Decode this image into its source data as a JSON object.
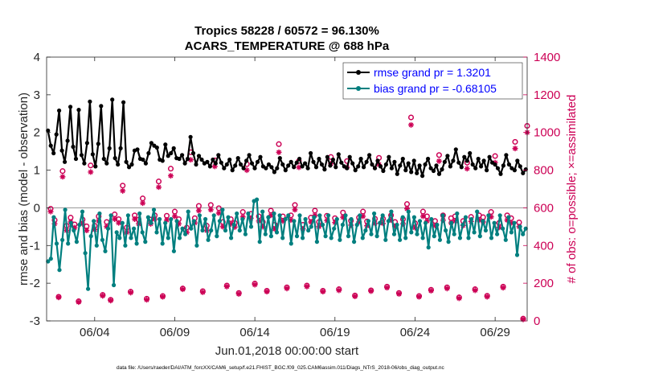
{
  "chart_data": {
    "type": "line",
    "title_line1": "Tropics 58228 / 60572 = 96.130%",
    "title_line2": "ACARS_TEMPERATURE @ 688 hPa",
    "xlabel": "Jun.01,2018 00:00:00 start",
    "ylabel_left": "rmse and bias (model - observation)",
    "ylabel_right": "# of obs: o=possible; ×=assimilated",
    "footnote": "data file: /Users/raeder/DAI/ATM_forcXX/CAM6_setup/f.e21.FHIST_BGC.f09_025.CAM6assim.011/Diags_NTrS_2018-06/obs_diag_output.nc",
    "x_ticks": [
      "06/04",
      "06/09",
      "06/14",
      "06/19",
      "06/24",
      "06/29"
    ],
    "x_tick_days": [
      4,
      9,
      14,
      19,
      24,
      29
    ],
    "xlim": [
      1,
      31
    ],
    "ylim_left": [
      -3,
      4
    ],
    "y_ticks_left": [
      "-3",
      "-2",
      "-1",
      "0",
      "1",
      "2",
      "3",
      "4"
    ],
    "ylim_right": [
      0,
      1400
    ],
    "y_ticks_right": [
      "0",
      "200",
      "400",
      "600",
      "800",
      "1000",
      "1200",
      "1400"
    ],
    "colors": {
      "rmse": "#000000",
      "bias": "#007f7f",
      "counts": "#cc0055",
      "zero_line": "#a0a0a0",
      "legend_text": "#0000ff"
    },
    "series": [
      {
        "name": "rmse grand pr = 1.3201",
        "axis": "left",
        "values": [
          2.05,
          1.65,
          1.45,
          1.95,
          2.58,
          1.52,
          1.22,
          1.78,
          2.68,
          1.62,
          1.3,
          2.6,
          1.4,
          1.18,
          1.72,
          2.82,
          1.42,
          1.1,
          1.7,
          2.7,
          1.3,
          1.18,
          1.58,
          2.87,
          1.32,
          1.15,
          1.58,
          2.8,
          1.22,
          1.08,
          1.15,
          1.52,
          1.55,
          1.3,
          1.28,
          1.18,
          1.45,
          1.72,
          1.65,
          1.6,
          1.28,
          1.25,
          1.68,
          1.38,
          1.45,
          1.58,
          1.32,
          1.3,
          1.4,
          1.18,
          1.3,
          1.88,
          1.45,
          1.15,
          1.38,
          1.28,
          1.18,
          1.22,
          1.1,
          1.28,
          1.18,
          1.4,
          1.2,
          1.05,
          1.15,
          1.28,
          1.0,
          1.12,
          1.32,
          1.15,
          1.05,
          1.25,
          1.4,
          1.18,
          1.05,
          1.22,
          1.35,
          1.1,
          1.05,
          1.15,
          1.08,
          0.95,
          1.05,
          1.32,
          1.15,
          1.0,
          1.12,
          1.22,
          1.08,
          1.2,
          1.3,
          1.1,
          1.18,
          1.05,
          1.45,
          1.22,
          1.08,
          1.3,
          1.15,
          1.02,
          1.35,
          1.12,
          1.28,
          1.08,
          1.42,
          1.2,
          1.1,
          1.05,
          1.35,
          1.18,
          1.0,
          1.1,
          1.3,
          1.08,
          1.22,
          1.4,
          1.15,
          1.05,
          1.25,
          1.1,
          0.98,
          1.15,
          1.35,
          1.05,
          1.22,
          0.9,
          1.12,
          1.3,
          1.0,
          1.18,
          0.95,
          1.25,
          0.92,
          1.12,
          0.85,
          1.15,
          1.3,
          1.05,
          0.98,
          1.12,
          0.9,
          1.02,
          1.22,
          1.38,
          1.1,
          1.25,
          1.55,
          1.2,
          1.08,
          1.35,
          1.25,
          1.45,
          1.15,
          1.05,
          1.3,
          1.1,
          1.25,
          1.0,
          1.35,
          1.2,
          1.15,
          1.05,
          0.9,
          1.12,
          1.4,
          1.15,
          1.05,
          1.0,
          1.25,
          1.1,
          0.92,
          1.02
        ]
      },
      {
        "name": "bias grand pr = -0.68105",
        "axis": "left",
        "values": [
          -1.42,
          -1.35,
          -0.25,
          -0.95,
          -1.65,
          -0.85,
          -0.05,
          -0.95,
          -0.4,
          -0.6,
          -0.9,
          -0.45,
          -0.1,
          -1.2,
          -2.15,
          -0.75,
          -0.35,
          -1.0,
          -0.15,
          -0.85,
          -1.15,
          -0.55,
          -0.2,
          -2.05,
          -0.65,
          -0.8,
          -0.4,
          -1.0,
          -0.2,
          -0.8,
          -0.55,
          -0.95,
          -0.15,
          -0.65,
          -0.9,
          -0.25,
          -0.4,
          -0.05,
          -0.65,
          -0.3,
          -0.95,
          -0.4,
          -0.8,
          -0.3,
          -1.15,
          -0.35,
          -0.8,
          -0.55,
          -0.7,
          -0.1,
          -0.55,
          -0.35,
          -1.0,
          -0.2,
          -0.6,
          -0.3,
          -0.85,
          -0.6,
          -0.2,
          -0.75,
          -0.35,
          -0.05,
          -0.6,
          -0.25,
          -0.8,
          -0.45,
          -0.15,
          -0.6,
          -0.3,
          -0.7,
          -0.15,
          -0.5,
          0.18,
          0.22,
          -0.9,
          -0.1,
          -0.7,
          -0.25,
          -0.75,
          -0.15,
          -0.65,
          -0.2,
          -0.8,
          -0.3,
          -0.2,
          -0.95,
          -0.35,
          -0.75,
          -0.2,
          -0.8,
          -0.3,
          -0.6,
          -0.5,
          -0.25,
          -0.9,
          -0.2,
          -0.45,
          -0.75,
          -0.2,
          -0.8,
          -0.55,
          -0.3,
          -0.85,
          -0.45,
          -0.2,
          -0.75,
          -0.3,
          -0.9,
          -0.45,
          -0.2,
          -0.8,
          -0.6,
          -0.35,
          -0.7,
          -0.15,
          -0.75,
          -0.4,
          -0.2,
          -0.85,
          -0.35,
          -0.1,
          -0.7,
          -0.45,
          -0.85,
          -0.25,
          -0.8,
          -0.1,
          -0.65,
          -0.25,
          -0.7,
          -0.35,
          -0.8,
          -0.4,
          -1.05,
          -0.3,
          -0.75,
          -0.45,
          -0.85,
          -0.2,
          -0.6,
          -0.9,
          -0.4,
          -0.7,
          -0.15,
          -0.8,
          -0.45,
          -0.25,
          -0.8,
          -0.3,
          -0.65,
          -0.1,
          -0.75,
          -0.35,
          -0.6,
          -0.2,
          -0.8,
          -0.4,
          -0.7,
          -0.2,
          -0.55,
          -0.85,
          -0.25,
          -0.65,
          -0.4,
          -1.25,
          -0.5,
          -0.7,
          -0.55
        ]
      },
      {
        "name": "possible",
        "axis": "right",
        "marker": "o",
        "x": [
          1.25,
          1.5,
          1.75,
          2.0,
          2.25,
          2.5,
          2.75,
          3.0,
          3.25,
          3.5,
          3.75,
          4.0,
          4.25,
          4.5,
          4.75,
          5.0,
          5.25,
          5.5,
          5.75,
          6.0,
          6.25,
          6.5,
          6.75,
          7.0,
          7.25,
          7.5,
          7.75,
          8.0,
          8.25,
          8.5,
          8.75,
          9.0,
          9.25,
          9.5,
          9.75,
          10.0,
          10.25,
          10.5,
          10.75,
          11.0,
          11.25,
          11.5,
          11.75,
          12.0,
          12.25,
          12.5,
          12.75,
          13.0,
          13.25,
          13.5,
          13.75,
          14.0,
          14.25,
          14.5,
          14.75,
          15.0,
          15.25,
          15.5,
          15.75,
          16.0,
          16.25,
          16.5,
          16.75,
          17.0,
          17.25,
          17.5,
          17.75,
          18.0,
          18.25,
          18.5,
          18.75,
          19.0,
          19.25,
          19.5,
          19.75,
          20.0,
          20.25,
          20.5,
          20.75,
          21.0,
          21.25,
          21.5,
          21.75,
          22.0,
          22.25,
          22.5,
          22.75,
          23.0,
          23.25,
          23.5,
          23.75,
          24.0,
          24.25,
          24.5,
          24.75,
          25.0,
          25.25,
          25.5,
          25.75,
          26.0,
          26.25,
          26.5,
          26.75,
          27.0,
          27.25,
          27.5,
          27.75,
          28.0,
          28.25,
          28.5,
          28.75,
          29.0,
          29.25,
          29.5,
          29.75,
          30.0,
          30.25,
          30.5,
          30.75,
          31.0
        ],
        "values": [
          595,
          535,
          128,
          795,
          505,
          548,
          512,
          104,
          538,
          502,
          825,
          505,
          555,
          138,
          525,
          112,
          565,
          540,
          718,
          495,
          155,
          560,
          538,
          650,
          118,
          538,
          560,
          740,
          132,
          558,
          808,
          580,
          540,
          172,
          495,
          895,
          545,
          610,
          158,
          505,
          615,
          852,
          598,
          525,
          188,
          540,
          520,
          148,
          578,
          832,
          568,
          198,
          555,
          525,
          160,
          585,
          510,
          938,
          555,
          178,
          560,
          615,
          848,
          510,
          188,
          548,
          585,
          525,
          160,
          558,
          870,
          545,
          168,
          575,
          848,
          532,
          135,
          548,
          580,
          528,
          162,
          542,
          865,
          542,
          182,
          560,
          525,
          148,
          540,
          620,
          1080,
          518,
          132,
          580,
          555,
          165,
          530,
          880,
          560,
          178,
          545,
          555,
          125,
          530,
          840,
          552,
          168,
          560,
          550,
          133,
          578,
          875,
          520,
          182,
          560,
          545,
          950,
          523,
          12,
          1035
        ]
      },
      {
        "name": "assimilated",
        "axis": "right",
        "marker": "*",
        "x": [
          1.25,
          1.5,
          1.75,
          2.0,
          2.25,
          2.5,
          2.75,
          3.0,
          3.25,
          3.5,
          3.75,
          4.0,
          4.25,
          4.5,
          4.75,
          5.0,
          5.25,
          5.5,
          5.75,
          6.0,
          6.25,
          6.5,
          6.75,
          7.0,
          7.25,
          7.5,
          7.75,
          8.0,
          8.25,
          8.5,
          8.75,
          9.0,
          9.25,
          9.5,
          9.75,
          10.0,
          10.25,
          10.5,
          10.75,
          11.0,
          11.25,
          11.5,
          11.75,
          12.0,
          12.25,
          12.5,
          12.75,
          13.0,
          13.25,
          13.5,
          13.75,
          14.0,
          14.25,
          14.5,
          14.75,
          15.0,
          15.25,
          15.5,
          15.75,
          16.0,
          16.25,
          16.5,
          16.75,
          17.0,
          17.25,
          17.5,
          17.75,
          18.0,
          18.25,
          18.5,
          18.75,
          19.0,
          19.25,
          19.5,
          19.75,
          20.0,
          20.25,
          20.5,
          20.75,
          21.0,
          21.25,
          21.5,
          21.75,
          22.0,
          22.25,
          22.5,
          22.75,
          23.0,
          23.25,
          23.5,
          23.75,
          24.0,
          24.25,
          24.5,
          24.75,
          25.0,
          25.25,
          25.5,
          25.75,
          26.0,
          26.25,
          26.5,
          26.75,
          27.0,
          27.25,
          27.5,
          27.75,
          28.0,
          28.25,
          28.5,
          28.75,
          29.0,
          29.25,
          29.5,
          29.75,
          30.0,
          30.25,
          30.5,
          30.75,
          31.0
        ],
        "values": [
          580,
          515,
          125,
          765,
          480,
          525,
          495,
          100,
          515,
          480,
          790,
          485,
          530,
          133,
          500,
          108,
          540,
          520,
          690,
          470,
          150,
          540,
          515,
          625,
          112,
          515,
          540,
          710,
          128,
          535,
          770,
          555,
          515,
          168,
          470,
          855,
          520,
          585,
          152,
          480,
          590,
          820,
          572,
          500,
          182,
          515,
          498,
          143,
          552,
          800,
          545,
          192,
          530,
          500,
          155,
          560,
          488,
          895,
          530,
          172,
          535,
          590,
          815,
          488,
          182,
          525,
          560,
          500,
          155,
          532,
          835,
          522,
          162,
          550,
          815,
          508,
          130,
          525,
          555,
          505,
          158,
          518,
          830,
          518,
          176,
          535,
          502,
          143,
          515,
          595,
          1040,
          495,
          128,
          555,
          530,
          160,
          506,
          848,
          535,
          172,
          520,
          530,
          120,
          506,
          808,
          528,
          162,
          535,
          525,
          128,
          552,
          840,
          496,
          176,
          535,
          520,
          915,
          500,
          8,
          1000
        ]
      }
    ],
    "legend": [
      {
        "label": "rmse grand pr = 1.3201"
      },
      {
        "label": "bias grand pr = -0.68105"
      }
    ]
  }
}
